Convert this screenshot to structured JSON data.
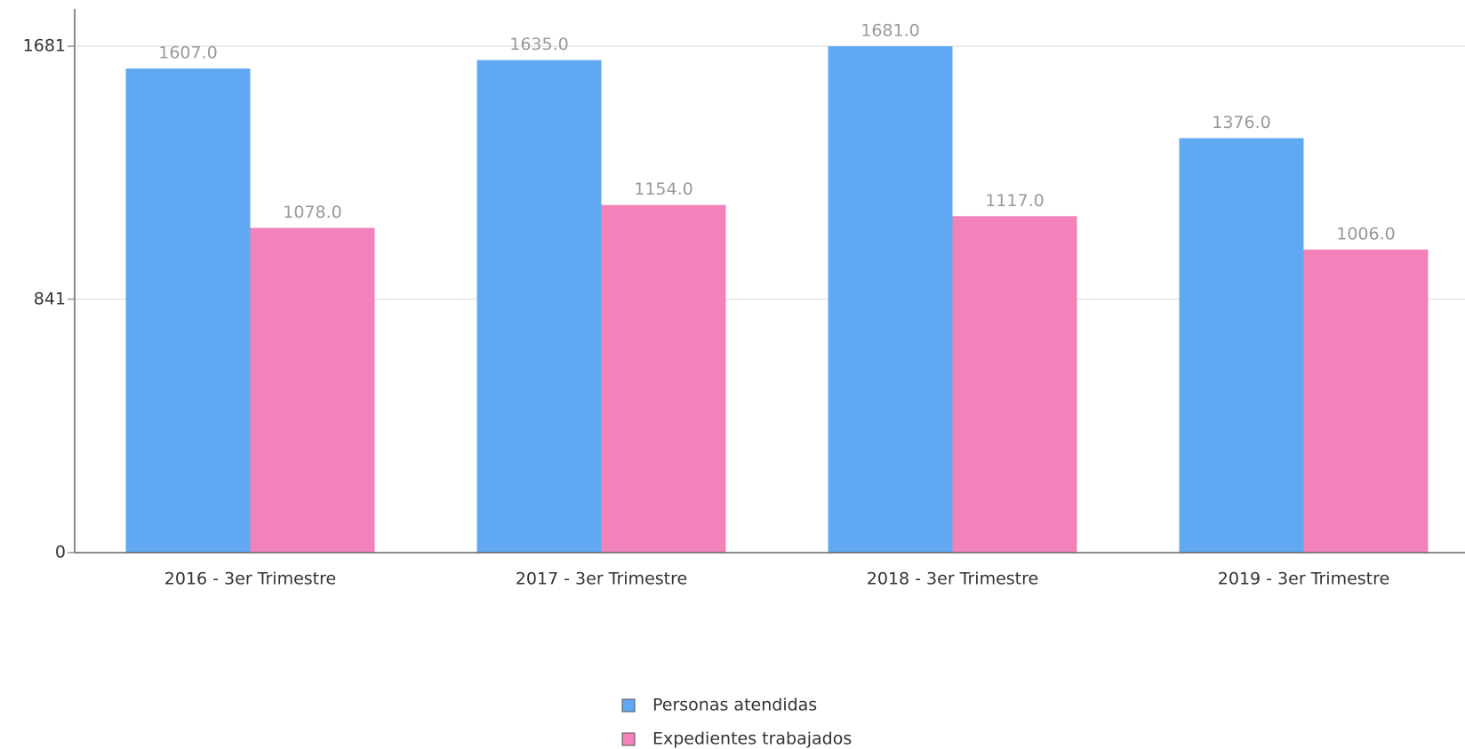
{
  "chart_data": {
    "type": "bar",
    "categories": [
      "2016 - 3er Trimestre",
      "2017 - 3er Trimestre",
      "2018 - 3er Trimestre",
      "2019 - 3er Trimestre"
    ],
    "series": [
      {
        "name": "Personas atendidas",
        "color": "#61a8f3",
        "values": [
          1607,
          1635,
          1681,
          1376
        ],
        "value_labels": [
          "1607.0",
          "1635.0",
          "1681.0",
          "1376.0"
        ]
      },
      {
        "name": "Expedientes trabajados",
        "color": "#f282b9",
        "values": [
          1078,
          1154,
          1117,
          1006
        ],
        "value_labels": [
          "1078.0",
          "1154.0",
          "1117.0",
          "1006.0"
        ]
      }
    ],
    "ylim": [
      0,
      1805
    ],
    "yticks": [
      0,
      841,
      1681
    ],
    "grid": true,
    "legend": "bottom"
  }
}
